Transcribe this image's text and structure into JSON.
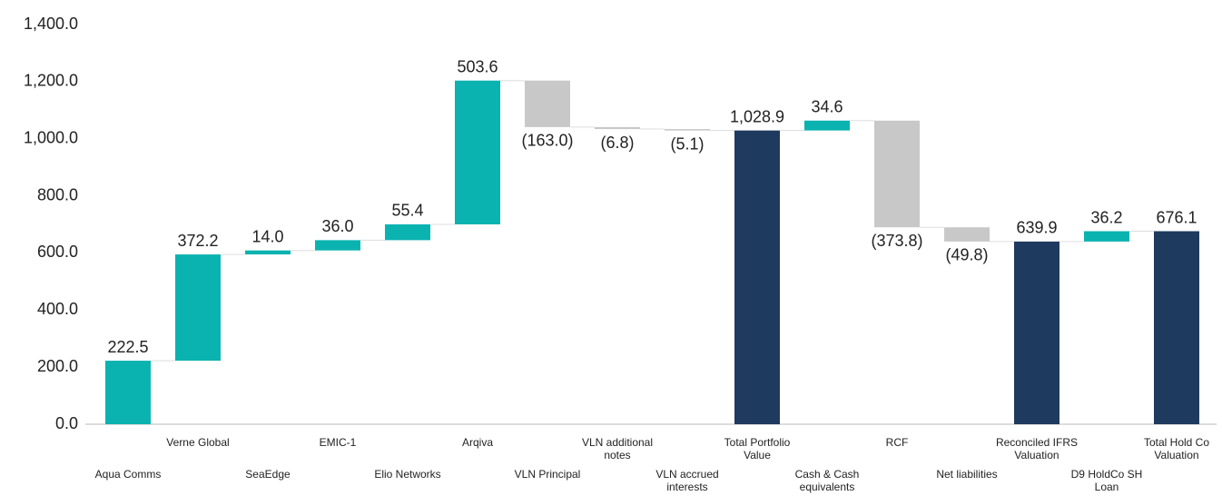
{
  "chart_data": {
    "type": "waterfall",
    "categories": [
      "Aqua Comms",
      "Verne Global",
      "SeaEdge",
      "EMIC-1",
      "Elio Networks",
      "Arqiva",
      "VLN Principal",
      "VLN additional notes",
      "VLN accrued interests",
      "Total Portfolio Value",
      "Cash & Cash equivalents",
      "RCF",
      "Net liabilities",
      "Reconciled IFRS Valuation",
      "D9 HoldCo SH Loan",
      "Total Hold Co Valuation"
    ],
    "values": [
      222.5,
      372.2,
      14.0,
      36.0,
      55.4,
      503.6,
      -163.0,
      -6.8,
      -5.1,
      1028.9,
      34.6,
      -373.8,
      -49.8,
      639.9,
      36.2,
      676.1
    ],
    "value_labels": [
      "222.5",
      "372.2",
      "14.0",
      "36.0",
      "55.4",
      "503.6",
      "(163.0)",
      "(6.8)",
      "(5.1)",
      "1,028.9",
      "34.6",
      "(373.8)",
      "(49.8)",
      "639.9",
      "36.2",
      "676.1"
    ],
    "totals": [
      9,
      13,
      15
    ],
    "colors": {
      "increase": "#0bb3b0",
      "decrease": "#c8c8c8",
      "total": "#1f3a5f"
    },
    "ylim": [
      0,
      1400
    ],
    "yticks": [
      {
        "value": 0,
        "label": "0.0"
      },
      {
        "value": 200,
        "label": "200.0"
      },
      {
        "value": 400,
        "label": "400.0"
      },
      {
        "value": 600,
        "label": "600.0"
      },
      {
        "value": 800,
        "label": "800.0"
      },
      {
        "value": 1000,
        "label": "1,000.0"
      },
      {
        "value": 1200,
        "label": "1,200.0"
      },
      {
        "value": 1400,
        "label": "1,400.0"
      }
    ]
  }
}
